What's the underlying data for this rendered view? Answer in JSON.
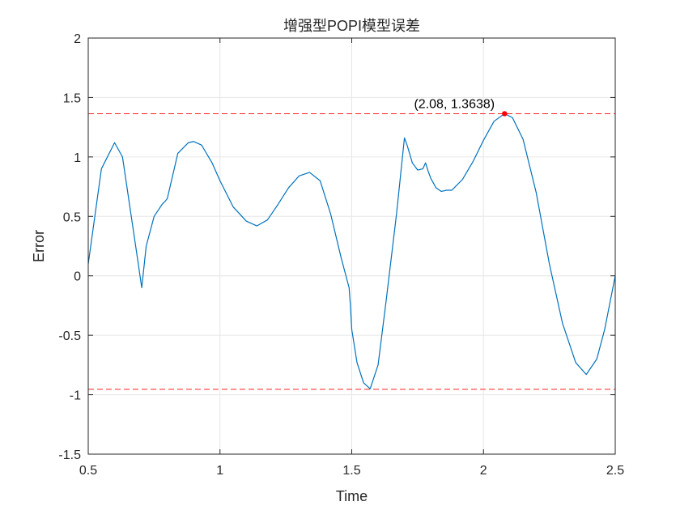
{
  "chart_data": {
    "type": "line",
    "title": "增强型POPI模型误差",
    "xlabel": "Time",
    "ylabel": "Error",
    "xlim": [
      0.5,
      2.5
    ],
    "ylim": [
      -1.5,
      2
    ],
    "xticks": [
      0.5,
      1,
      1.5,
      2,
      2.5
    ],
    "xtick_labels": [
      "0.5",
      "1",
      "1.5",
      "2",
      "2.5"
    ],
    "yticks": [
      -1.5,
      -1,
      -0.5,
      0,
      0.5,
      1,
      1.5,
      2
    ],
    "ytick_labels": [
      "-1.5",
      "-1",
      "-0.5",
      "0",
      "0.5",
      "1",
      "1.5",
      "2"
    ],
    "grid": true,
    "series": [
      {
        "color": "#0072BD",
        "x": [
          0.5,
          0.55,
          0.6,
          0.63,
          0.66,
          0.69,
          0.703,
          0.72,
          0.75,
          0.78,
          0.793,
          0.8,
          0.84,
          0.88,
          0.9,
          0.93,
          0.97,
          1.0,
          1.05,
          1.1,
          1.14,
          1.18,
          1.22,
          1.26,
          1.3,
          1.34,
          1.38,
          1.42,
          1.46,
          1.49,
          1.495,
          1.5,
          1.52,
          1.545,
          1.57,
          1.6,
          1.63,
          1.67,
          1.7,
          1.71,
          1.73,
          1.75,
          1.77,
          1.78,
          1.79,
          1.8,
          1.82,
          1.84,
          1.86,
          1.88,
          1.92,
          1.96,
          2.0,
          2.04,
          2.08,
          2.11,
          2.15,
          2.2,
          2.25,
          2.3,
          2.35,
          2.39,
          2.43,
          2.46,
          2.5
        ],
        "y": [
          0.1,
          0.9,
          1.12,
          1.0,
          0.55,
          0.1,
          -0.1,
          0.25,
          0.5,
          0.6,
          0.63,
          0.65,
          1.03,
          1.12,
          1.13,
          1.1,
          0.95,
          0.8,
          0.58,
          0.46,
          0.42,
          0.47,
          0.6,
          0.74,
          0.84,
          0.87,
          0.8,
          0.52,
          0.15,
          -0.1,
          -0.25,
          -0.45,
          -0.73,
          -0.9,
          -0.95,
          -0.75,
          -0.22,
          0.52,
          1.16,
          1.1,
          0.95,
          0.89,
          0.9,
          0.95,
          0.88,
          0.82,
          0.74,
          0.71,
          0.72,
          0.72,
          0.81,
          0.96,
          1.14,
          1.3,
          1.3638,
          1.33,
          1.15,
          0.7,
          0.1,
          -0.4,
          -0.73,
          -0.83,
          -0.7,
          -0.45,
          0.0
        ]
      }
    ],
    "reference_lines": [
      {
        "orientation": "horizontal",
        "y": 1.3638,
        "color": "#ff0000",
        "style": "dashed"
      },
      {
        "orientation": "horizontal",
        "y": -0.955,
        "color": "#ff0000",
        "style": "dashed"
      }
    ],
    "marker": {
      "x": 2.08,
      "y": 1.3638,
      "color": "#ff0000"
    },
    "annotation": "(2.08, 1.3638)"
  }
}
